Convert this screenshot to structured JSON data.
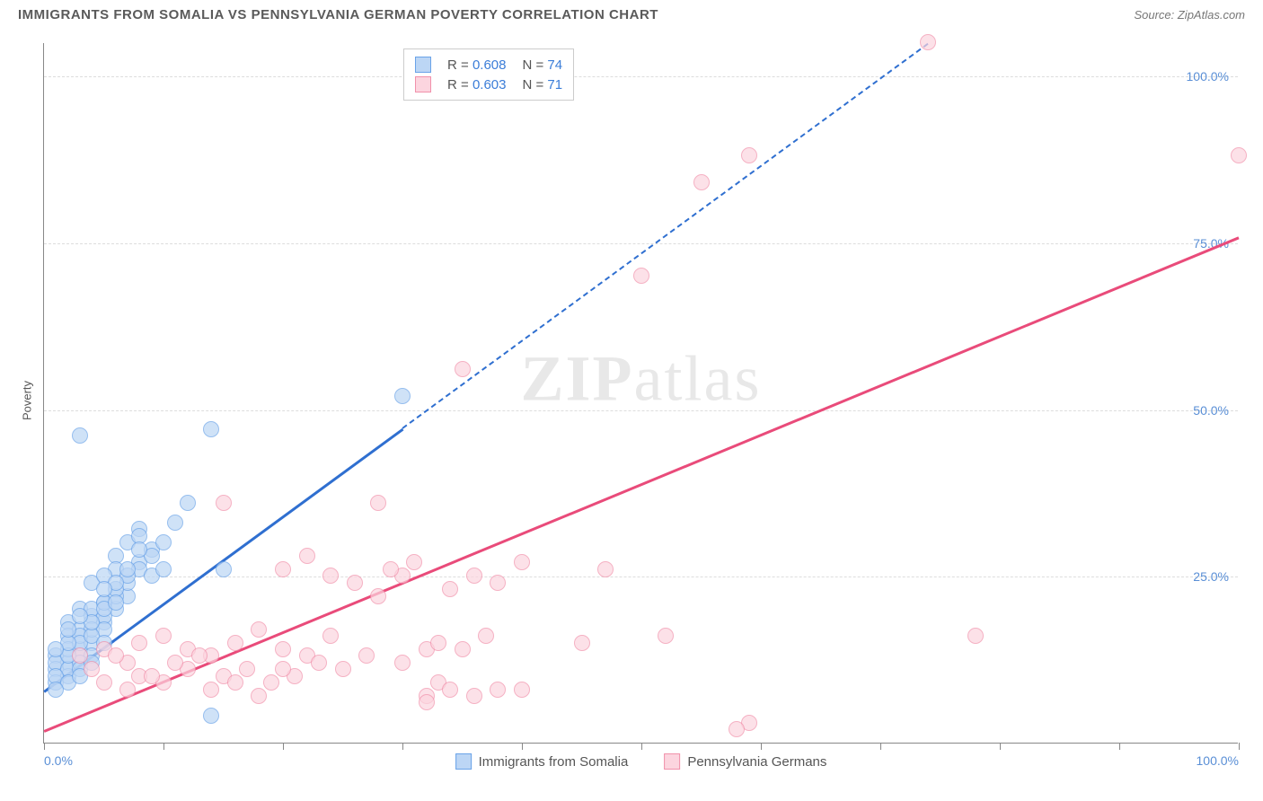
{
  "title": "IMMIGRANTS FROM SOMALIA VS PENNSYLVANIA GERMAN POVERTY CORRELATION CHART",
  "source": "Source: ZipAtlas.com",
  "ylabel": "Poverty",
  "watermark_bold": "ZIP",
  "watermark_light": "atlas",
  "chart": {
    "type": "scatter",
    "xlim": [
      0,
      100
    ],
    "ylim": [
      0,
      105
    ],
    "ytick_values": [
      25,
      50,
      75,
      100
    ],
    "ytick_labels": [
      "25.0%",
      "50.0%",
      "75.0%",
      "100.0%"
    ],
    "xtick_values": [
      0,
      10,
      20,
      30,
      40,
      50,
      60,
      70,
      80,
      90,
      100
    ],
    "xtick_labels_left": "0.0%",
    "xtick_labels_right": "100.0%",
    "background_color": "#ffffff",
    "grid_color": "#dddddd",
    "axis_color": "#888888",
    "tick_label_color": "#5a8fd6"
  },
  "series": [
    {
      "name": "Immigrants from Somalia",
      "marker_fill": "#bcd6f5",
      "marker_stroke": "#6aa3e8",
      "marker_opacity": 0.7,
      "marker_radius": 9,
      "trend_color": "#2f6fd0",
      "trend_dashed_after_x": 30,
      "trend_start": [
        0,
        8
      ],
      "trend_end": [
        74,
        105
      ],
      "R": "0.608",
      "N": "74",
      "points": [
        [
          2,
          18
        ],
        [
          3,
          20
        ],
        [
          1,
          13
        ],
        [
          2,
          16
        ],
        [
          3,
          14
        ],
        [
          4,
          19
        ],
        [
          2,
          12
        ],
        [
          1,
          11
        ],
        [
          3,
          17
        ],
        [
          5,
          21
        ],
        [
          6,
          28
        ],
        [
          4,
          24
        ],
        [
          7,
          30
        ],
        [
          8,
          32
        ],
        [
          6,
          26
        ],
        [
          3,
          46
        ],
        [
          14,
          47
        ],
        [
          2,
          10
        ],
        [
          1,
          9
        ],
        [
          4,
          15
        ],
        [
          5,
          18
        ],
        [
          3,
          13
        ],
        [
          6,
          20
        ],
        [
          7,
          22
        ],
        [
          5,
          25
        ],
        [
          8,
          27
        ],
        [
          9,
          29
        ],
        [
          4,
          17
        ],
        [
          2,
          14
        ],
        [
          1,
          12
        ],
        [
          3,
          16
        ],
        [
          5,
          19
        ],
        [
          7,
          24
        ],
        [
          10,
          30
        ],
        [
          11,
          33
        ],
        [
          6,
          22
        ],
        [
          4,
          20
        ],
        [
          2,
          11
        ],
        [
          8,
          26
        ],
        [
          9,
          28
        ],
        [
          3,
          15
        ],
        [
          5,
          17
        ],
        [
          1,
          10
        ],
        [
          2,
          9
        ],
        [
          4,
          13
        ],
        [
          6,
          23
        ],
        [
          7,
          25
        ],
        [
          3,
          12
        ],
        [
          5,
          21
        ],
        [
          8,
          31
        ],
        [
          9,
          25
        ],
        [
          10,
          26
        ],
        [
          12,
          36
        ],
        [
          15,
          26
        ],
        [
          30,
          52
        ],
        [
          1,
          8
        ],
        [
          2,
          13
        ],
        [
          3,
          11
        ],
        [
          4,
          16
        ],
        [
          5,
          20
        ],
        [
          6,
          24
        ],
        [
          14,
          4
        ],
        [
          2,
          15
        ],
        [
          7,
          26
        ],
        [
          8,
          29
        ],
        [
          4,
          18
        ],
        [
          3,
          19
        ],
        [
          5,
          23
        ],
        [
          6,
          21
        ],
        [
          1,
          14
        ],
        [
          2,
          17
        ],
        [
          3,
          10
        ],
        [
          4,
          12
        ],
        [
          5,
          15
        ]
      ]
    },
    {
      "name": "Pennsylvania Germans",
      "marker_fill": "#fcd5df",
      "marker_stroke": "#f191ab",
      "marker_opacity": 0.7,
      "marker_radius": 9,
      "trend_color": "#e94b7a",
      "trend_dashed_after_x": 101,
      "trend_start": [
        0,
        2
      ],
      "trend_end": [
        100,
        76
      ],
      "R": "0.603",
      "N": "71",
      "points": [
        [
          3,
          13
        ],
        [
          5,
          14
        ],
        [
          7,
          12
        ],
        [
          4,
          11
        ],
        [
          6,
          13
        ],
        [
          8,
          15
        ],
        [
          10,
          16
        ],
        [
          12,
          14
        ],
        [
          14,
          13
        ],
        [
          16,
          15
        ],
        [
          18,
          17
        ],
        [
          20,
          14
        ],
        [
          22,
          13
        ],
        [
          24,
          16
        ],
        [
          15,
          36
        ],
        [
          26,
          24
        ],
        [
          28,
          22
        ],
        [
          30,
          25
        ],
        [
          32,
          14
        ],
        [
          34,
          23
        ],
        [
          36,
          25
        ],
        [
          32,
          7
        ],
        [
          38,
          24
        ],
        [
          40,
          27
        ],
        [
          35,
          56
        ],
        [
          33,
          9
        ],
        [
          34,
          8
        ],
        [
          36,
          7
        ],
        [
          38,
          8
        ],
        [
          28,
          36
        ],
        [
          30,
          12
        ],
        [
          40,
          8
        ],
        [
          32,
          6
        ],
        [
          50,
          70
        ],
        [
          52,
          16
        ],
        [
          55,
          84
        ],
        [
          59,
          88
        ],
        [
          20,
          26
        ],
        [
          22,
          28
        ],
        [
          24,
          25
        ],
        [
          59,
          3
        ],
        [
          58,
          2
        ],
        [
          78,
          16
        ],
        [
          100,
          88
        ],
        [
          74,
          105
        ],
        [
          15,
          10
        ],
        [
          17,
          11
        ],
        [
          19,
          9
        ],
        [
          21,
          10
        ],
        [
          23,
          12
        ],
        [
          25,
          11
        ],
        [
          27,
          13
        ],
        [
          29,
          26
        ],
        [
          31,
          27
        ],
        [
          33,
          15
        ],
        [
          35,
          14
        ],
        [
          37,
          16
        ],
        [
          8,
          10
        ],
        [
          10,
          9
        ],
        [
          12,
          11
        ],
        [
          14,
          8
        ],
        [
          16,
          9
        ],
        [
          18,
          7
        ],
        [
          20,
          11
        ],
        [
          5,
          9
        ],
        [
          7,
          8
        ],
        [
          9,
          10
        ],
        [
          11,
          12
        ],
        [
          13,
          13
        ],
        [
          47,
          26
        ],
        [
          45,
          15
        ]
      ]
    }
  ],
  "legend": {
    "item1": "Immigrants from Somalia",
    "item2": "Pennsylvania Germans"
  },
  "stats_labels": {
    "R": "R =",
    "N": "N ="
  }
}
